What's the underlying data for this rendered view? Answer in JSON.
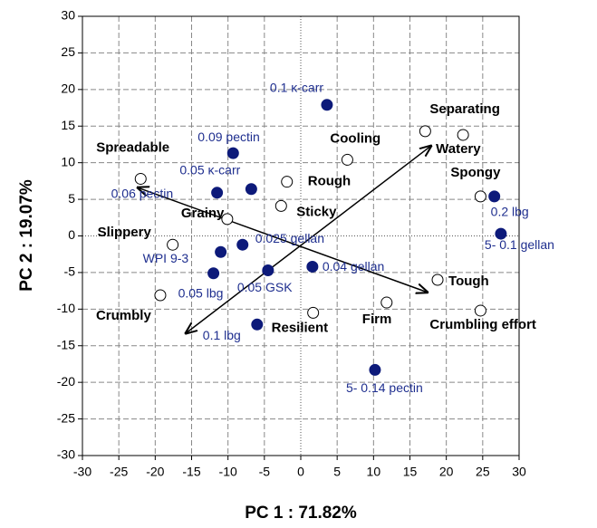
{
  "chart_data": {
    "type": "scatter",
    "xlabel": "PC 1 : 71.82%",
    "ylabel": "PC 2 : 19.07%",
    "xlim": [
      -30,
      30
    ],
    "ylim": [
      -30,
      30
    ],
    "xticks": [
      -30,
      -25,
      -20,
      -15,
      -10,
      -5,
      0,
      5,
      10,
      15,
      20,
      25,
      30
    ],
    "yticks": [
      -30,
      -25,
      -20,
      -15,
      -10,
      -5,
      0,
      5,
      10,
      15,
      20,
      25,
      30
    ],
    "grid": true,
    "series": [
      {
        "color": "#0d1a7a",
        "marker": "filled",
        "labels": [
          "0.1 κ-carr",
          "0.09 pectin",
          "0.05 κ-carr",
          "0.06 pectin",
          "0.025 gellan",
          "WPI 9-3",
          "0.05 lbg",
          "0.05 GSK",
          "0.04 gellan",
          "0.1 lbg",
          "5- 0.14 pectin",
          "0.2 lbg",
          "5- 0.1 gellan"
        ],
        "x": [
          3.6,
          -9.3,
          -6.8,
          -11.5,
          -8.0,
          -11.0,
          -12.0,
          -4.5,
          1.6,
          -6.0,
          10.2,
          26.6,
          27.5
        ],
        "y": [
          17.9,
          11.3,
          6.4,
          5.9,
          -1.2,
          -2.2,
          -5.1,
          -4.7,
          -4.2,
          -12.1,
          -18.3,
          5.4,
          0.3
        ]
      },
      {
        "color": "#000000",
        "marker": "open",
        "labels": [
          "Spreadable",
          "Slippery",
          "Crumbly",
          "Grainy",
          "Rough",
          "Sticky",
          "Cooling",
          "Separating",
          "Watery",
          "Spongy",
          "Tough",
          "Firm",
          "Crumbling effort",
          "Resilient"
        ],
        "x": [
          -22.0,
          -17.6,
          -19.3,
          -10.1,
          -1.9,
          -2.7,
          6.4,
          17.1,
          22.3,
          24.7,
          18.8,
          11.8,
          24.7,
          1.7
        ],
        "y": [
          7.8,
          -1.2,
          -8.1,
          2.3,
          7.4,
          4.1,
          10.4,
          14.3,
          13.8,
          5.4,
          -6.0,
          -9.1,
          -10.2,
          -10.5
        ]
      }
    ],
    "arrows": [
      {
        "x": [
          -15.8,
          17.9
        ],
        "y": [
          -13.3,
          12.3
        ]
      },
      {
        "x": [
          -22.4,
          17.4
        ],
        "y": [
          6.6,
          -7.7
        ]
      }
    ]
  }
}
